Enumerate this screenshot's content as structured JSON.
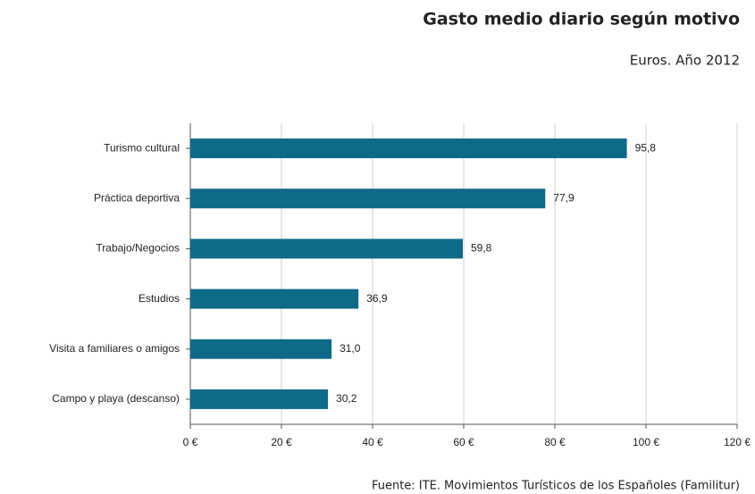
{
  "chart_data": {
    "type": "bar",
    "orientation": "horizontal",
    "title": "Gasto medio diario según motivo",
    "subtitle": "Euros. Año 2012",
    "source": "Fuente: ITE. Movimientos Turísticos de los Españoles (Familitur)",
    "categories": [
      "Turismo cultural",
      "Práctica deportiva",
      "Trabajo/Negocios",
      "Estudios",
      "Visita a familiares o amigos",
      "Campo y playa (descanso)"
    ],
    "values": [
      95.8,
      77.9,
      59.8,
      36.9,
      31.0,
      30.2
    ],
    "value_labels": [
      "95,8",
      "77,9",
      "59,8",
      "36,9",
      "31,0",
      "30,2"
    ],
    "color": "#0e6a87",
    "xlim": [
      0,
      120
    ],
    "xticks": [
      {
        "value": 0,
        "label": "0 €"
      },
      {
        "value": 20,
        "label": "20 €"
      },
      {
        "value": 40,
        "label": "40 €"
      },
      {
        "value": 60,
        "label": "60 €"
      },
      {
        "value": 80,
        "label": "80 €"
      },
      {
        "value": 100,
        "label": "100 €"
      },
      {
        "value": 120,
        "label": "120 €"
      }
    ],
    "grid": true
  }
}
